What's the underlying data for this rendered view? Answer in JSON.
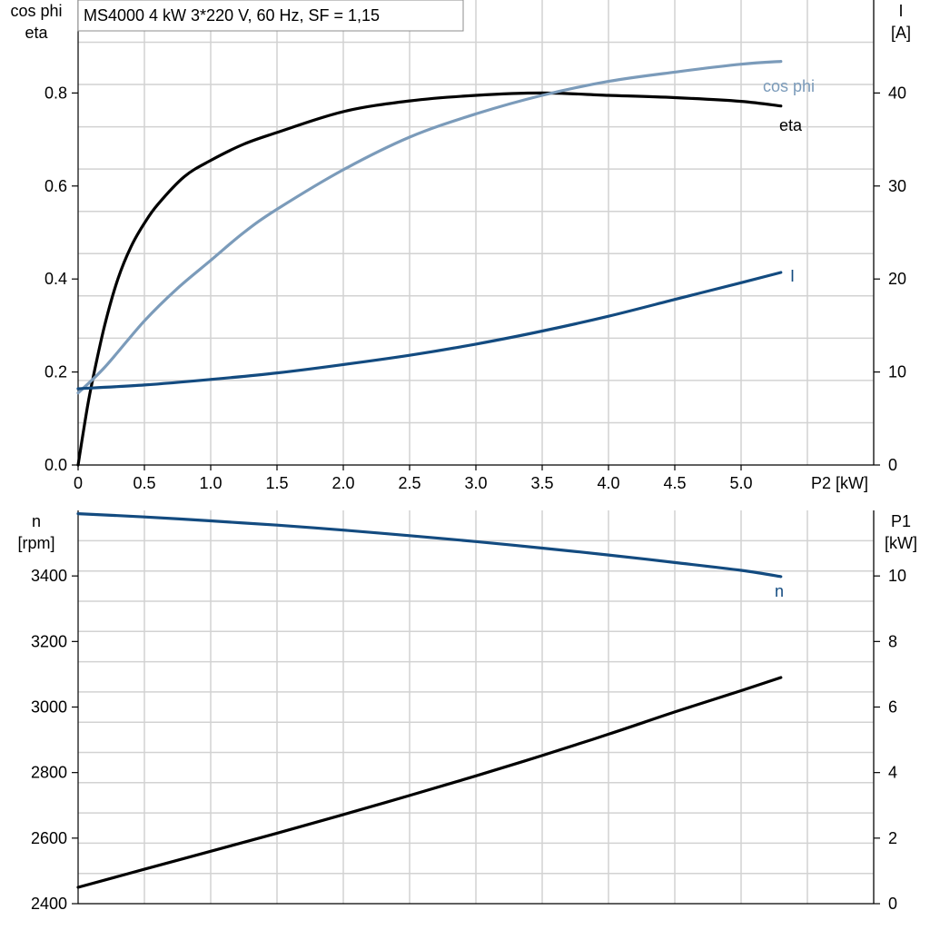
{
  "title": "MS4000   4 kW   3*220 V, 60 Hz, SF = 1,15",
  "chart_data": [
    {
      "type": "line",
      "name": "top",
      "x_label": "P2 [kW]",
      "y_left_label_lines": [
        "cos phi",
        "eta"
      ],
      "y_right_label_lines": [
        "I",
        "[A]"
      ],
      "xlim": [
        0,
        6
      ],
      "ylim_left": [
        0,
        1.0
      ],
      "ylim_right": [
        0,
        50
      ],
      "x_ticks": [
        "0",
        "0.5",
        "1.0",
        "1.5",
        "2.0",
        "2.5",
        "3.0",
        "3.5",
        "4.0",
        "4.5",
        "5.0"
      ],
      "y_left_ticks": [
        "0.0",
        "0.2",
        "0.4",
        "0.6",
        "0.8"
      ],
      "y_right_ticks": [
        "0",
        "10",
        "20",
        "30",
        "40"
      ],
      "grid": true,
      "series": [
        {
          "name": "eta",
          "axis": "left",
          "color": "#000000",
          "x": [
            0,
            0.05,
            0.1,
            0.2,
            0.3,
            0.4,
            0.5,
            0.6,
            0.8,
            1.0,
            1.25,
            1.5,
            2.0,
            2.5,
            3.0,
            3.5,
            4.0,
            4.5,
            5.0,
            5.3
          ],
          "y": [
            0.0,
            0.09,
            0.17,
            0.3,
            0.4,
            0.47,
            0.52,
            0.56,
            0.62,
            0.655,
            0.69,
            0.715,
            0.76,
            0.783,
            0.795,
            0.8,
            0.795,
            0.79,
            0.782,
            0.772
          ]
        },
        {
          "name": "cos phi",
          "axis": "left",
          "color": "#7b9bba",
          "x": [
            0,
            0.2,
            0.5,
            0.75,
            1.0,
            1.25,
            1.5,
            2.0,
            2.5,
            3.0,
            3.5,
            4.0,
            4.5,
            5.0,
            5.3
          ],
          "y": [
            0.155,
            0.21,
            0.31,
            0.38,
            0.44,
            0.5,
            0.55,
            0.635,
            0.705,
            0.755,
            0.795,
            0.825,
            0.845,
            0.862,
            0.868
          ]
        },
        {
          "name": "I",
          "axis": "right",
          "color": "#134b80",
          "x": [
            0,
            0.5,
            1.0,
            1.5,
            2.0,
            2.5,
            3.0,
            3.5,
            4.0,
            4.5,
            5.0,
            5.3
          ],
          "y": [
            8.2,
            8.6,
            9.2,
            9.9,
            10.8,
            11.8,
            13.0,
            14.4,
            16.0,
            17.8,
            19.6,
            20.7
          ]
        }
      ]
    },
    {
      "type": "line",
      "name": "bottom",
      "y_left_label_lines": [
        "n",
        "[rpm]"
      ],
      "y_right_label_lines": [
        "P1",
        "[kW]"
      ],
      "xlim": [
        0,
        6
      ],
      "ylim_left": [
        2400,
        3600
      ],
      "ylim_right": [
        0,
        12
      ],
      "y_left_ticks": [
        "2400",
        "2600",
        "2800",
        "3000",
        "3200",
        "3400"
      ],
      "y_right_ticks": [
        "0",
        "2",
        "4",
        "6",
        "8",
        "10"
      ],
      "grid": true,
      "series": [
        {
          "name": "n",
          "axis": "left",
          "color": "#134b80",
          "x": [
            0,
            0.5,
            1.0,
            1.5,
            2.0,
            2.5,
            3.0,
            3.5,
            4.0,
            4.5,
            5.0,
            5.3
          ],
          "y": [
            3590,
            3580,
            3568,
            3555,
            3540,
            3523,
            3505,
            3485,
            3464,
            3441,
            3417,
            3398
          ]
        },
        {
          "name": "P1",
          "axis": "right",
          "color": "#000000",
          "x": [
            0,
            0.5,
            1.0,
            1.5,
            2.0,
            2.5,
            3.0,
            3.5,
            4.0,
            4.5,
            5.0,
            5.3
          ],
          "y": [
            0.5,
            1.05,
            1.6,
            2.15,
            2.72,
            3.3,
            3.9,
            4.52,
            5.17,
            5.85,
            6.5,
            6.9
          ]
        }
      ]
    }
  ]
}
